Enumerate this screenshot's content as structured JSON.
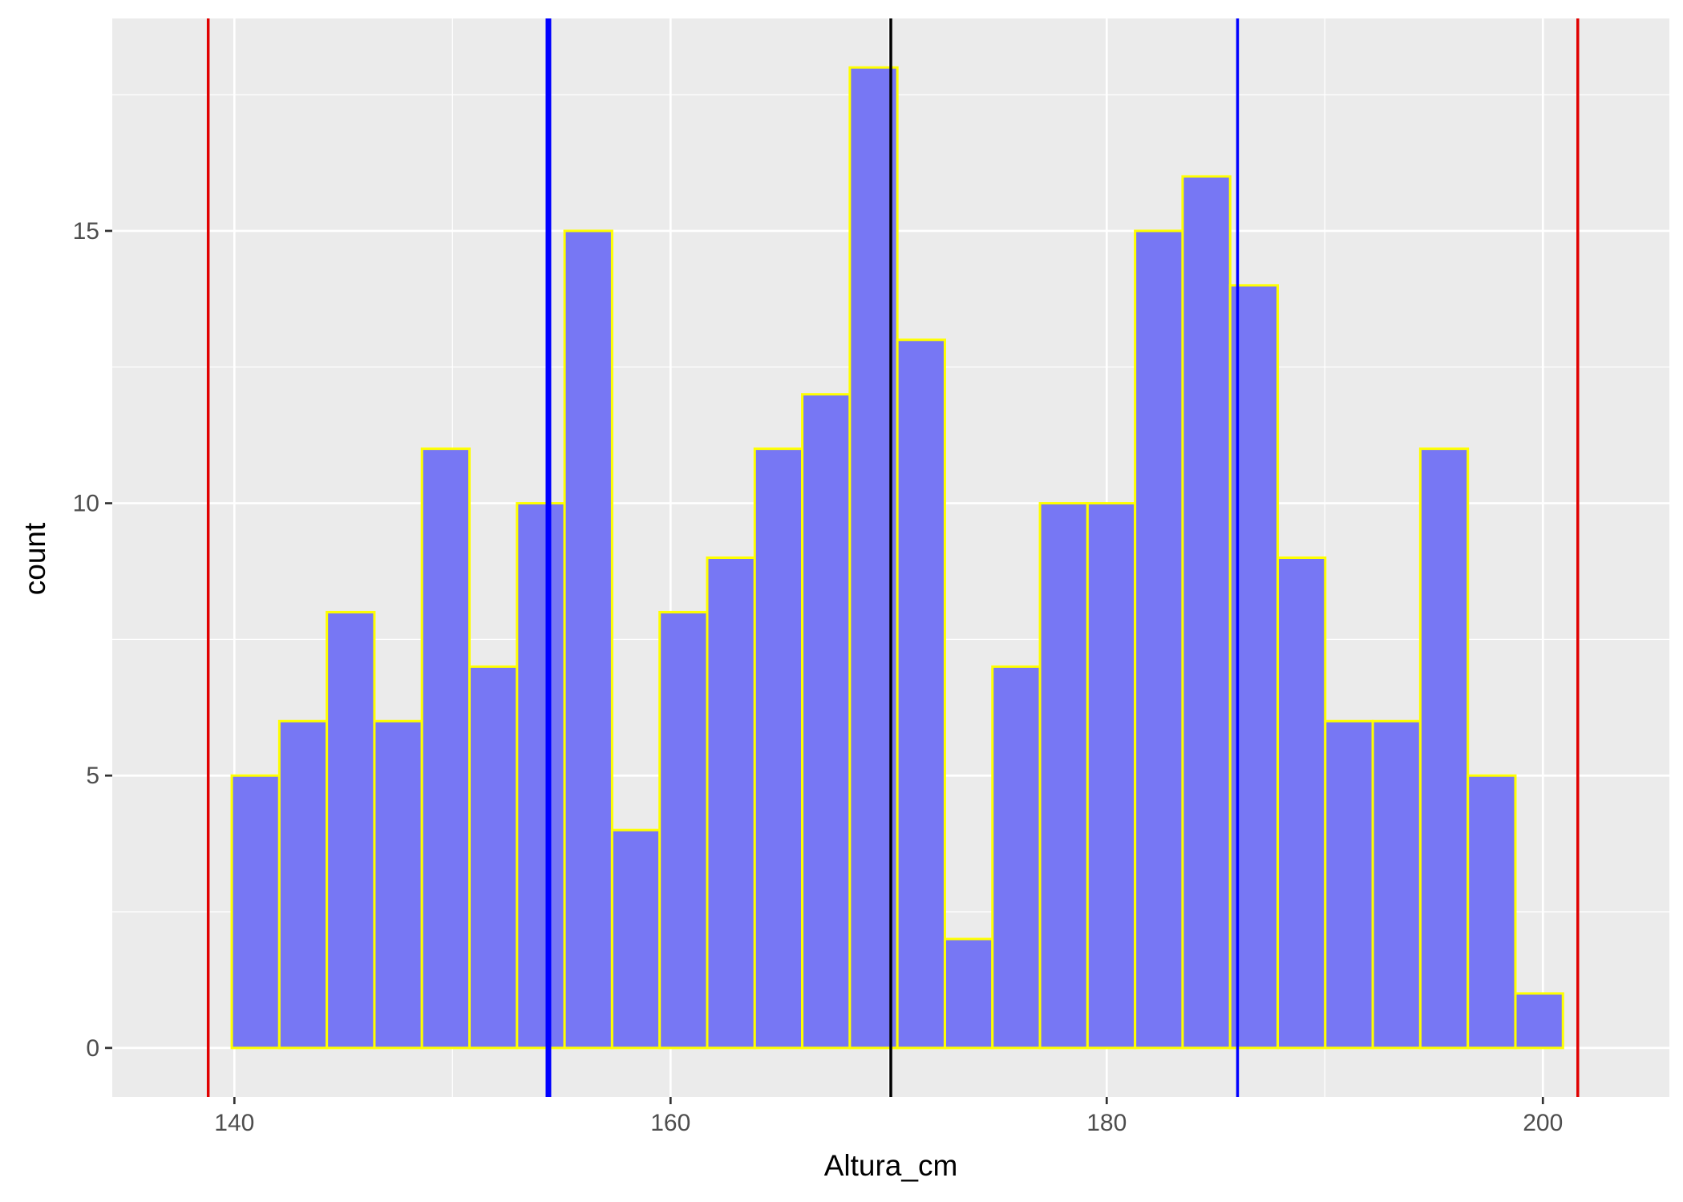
{
  "chart_data": {
    "type": "bar",
    "title": "",
    "xlabel": "Altura_cm",
    "ylabel": "count",
    "x_range": [
      134.4,
      205.8
    ],
    "y_range": [
      -0.9,
      18.9
    ],
    "x_ticks": [
      140,
      160,
      180,
      200
    ],
    "y_ticks": [
      0,
      5,
      10,
      15
    ],
    "x_minor_ticks": [
      150,
      170,
      190
    ],
    "y_minor_ticks": [
      2.5,
      7.5,
      12.5,
      17.5
    ],
    "bin_edges": [
      137.7,
      139.88,
      142.06,
      144.24,
      146.42,
      148.6,
      150.78,
      152.96,
      155.14,
      157.32,
      159.5,
      161.68,
      163.86,
      166.04,
      168.22,
      170.4,
      172.58,
      174.76,
      176.94,
      179.12,
      181.3,
      183.48,
      185.66,
      187.84,
      190.02,
      192.2,
      194.38,
      196.56,
      198.74,
      200.92,
      203.1
    ],
    "counts": [
      0,
      5,
      6,
      8,
      6,
      11,
      7,
      10,
      15,
      4,
      8,
      9,
      11,
      12,
      18,
      13,
      2,
      7,
      10,
      10,
      15,
      16,
      14,
      9,
      6,
      6,
      11,
      5,
      1,
      0
    ],
    "reference_lines": [
      {
        "x": 138.8,
        "color": "#e00000"
      },
      {
        "x": 154.4,
        "color": "#0000ff"
      },
      {
        "x": 170.1,
        "color": "#000000"
      },
      {
        "x": 186.0,
        "color": "#0000ff"
      },
      {
        "x": 201.6,
        "color": "#e00000"
      }
    ],
    "colors": {
      "panel_background": "#ebebeb",
      "grid": "#ffffff",
      "bar_fill": "#7777f4",
      "bar_outline": "#ffff00"
    },
    "grid": true,
    "legend": "none"
  }
}
